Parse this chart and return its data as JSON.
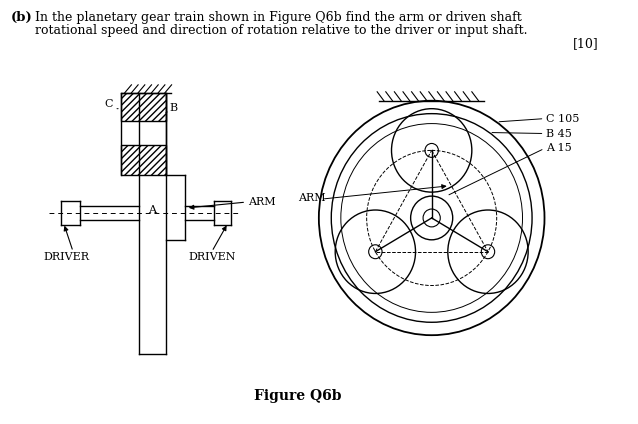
{
  "background_color": "#ffffff",
  "line_color": "#000000",
  "header_b": "(b)",
  "header_line1": "In the planetary gear train shown in Figure Q6b find the arm or driven shaft",
  "header_line2": "rotational speed and direction of rotation relative to the driver or input shaft.",
  "marks": "[10]",
  "figure_label": "Figure Q6b",
  "label_C_side": "C",
  "label_B_side": "B",
  "label_A_side": "A",
  "label_ARM": "ARM",
  "label_DRIVER": "DRIVER",
  "label_DRIVEN": "DRIVEN",
  "label_C105": "C 105",
  "label_B45": "B 45",
  "label_A15": "A 15"
}
